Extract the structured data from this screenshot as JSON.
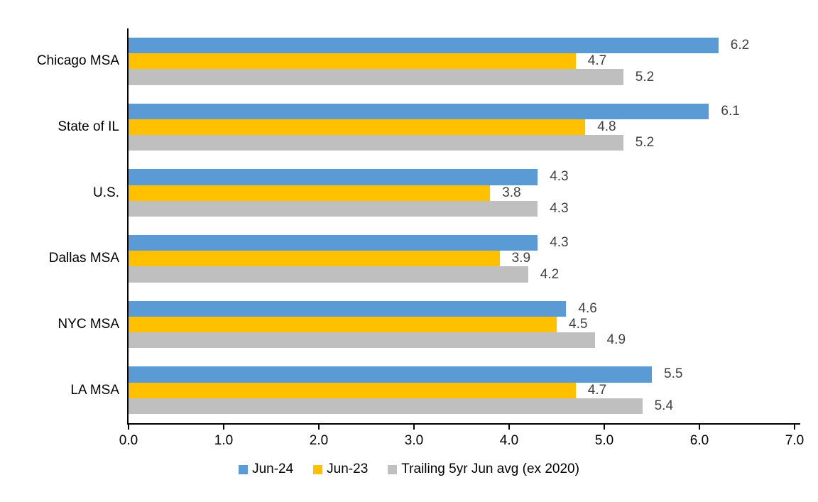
{
  "chart_data": {
    "type": "bar",
    "orientation": "horizontal",
    "title": "",
    "xlabel": "",
    "ylabel": "",
    "categories": [
      "Chicago MSA",
      "State of IL",
      "U.S.",
      "Dallas MSA",
      "NYC MSA",
      "LA MSA"
    ],
    "series": [
      {
        "name": "Jun-24",
        "color": "#5B9BD5",
        "values": [
          6.2,
          6.1,
          4.3,
          4.3,
          4.6,
          5.5
        ]
      },
      {
        "name": "Jun-23",
        "color": "#FFC000",
        "values": [
          4.7,
          4.8,
          3.8,
          3.9,
          4.5,
          4.7
        ]
      },
      {
        "name": "Trailing 5yr Jun avg (ex 2020)",
        "color": "#BFBFBF",
        "values": [
          5.2,
          5.2,
          4.3,
          4.2,
          4.9,
          5.4
        ]
      }
    ],
    "xlim": [
      0,
      7
    ],
    "x_ticks": [
      "0.0",
      "1.0",
      "2.0",
      "3.0",
      "4.0",
      "5.0",
      "6.0",
      "7.0"
    ],
    "data_labels": true,
    "value_label_color": "#404040",
    "value_label_format": "one_decimal",
    "axis_color": "#000000",
    "background_color": "#FFFFFF",
    "grid": false,
    "legend_position": "bottom"
  }
}
